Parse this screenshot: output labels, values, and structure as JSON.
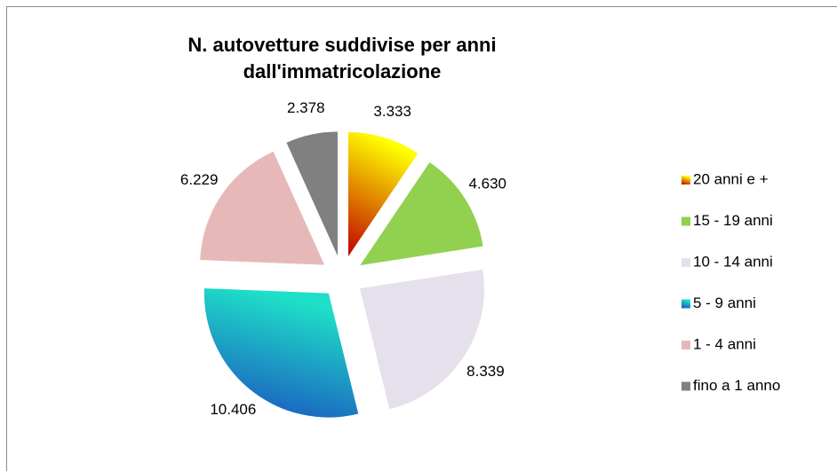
{
  "chart_data": {
    "type": "pie",
    "title": [
      "N. autovetture suddivise per anni",
      "dall'immatricolazione"
    ],
    "categories": [
      "20 anni e +",
      "15 - 19 anni",
      "10 - 14 anni",
      "5 - 9 anni",
      "1 - 4 anni",
      "fino a 1 anno"
    ],
    "values": [
      3333,
      4630,
      8339,
      10406,
      6229,
      2378
    ],
    "value_labels": [
      "3.333",
      "4.630",
      "8.339",
      "10.406",
      "6.229",
      "2.378"
    ],
    "colors": [
      [
        "#c00000",
        "#ffff00"
      ],
      "#92d050",
      "#e6e0ec",
      [
        "#1a4fbf",
        "#1ee0c8"
      ],
      "#e6b9b8",
      "#808080"
    ],
    "legend": "right"
  }
}
